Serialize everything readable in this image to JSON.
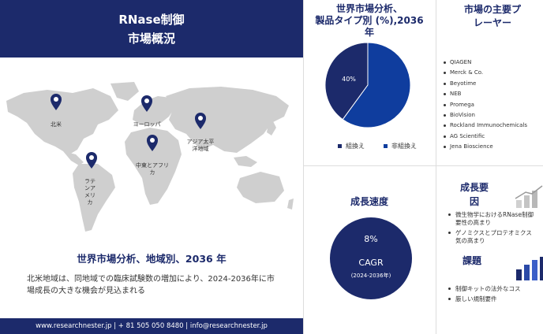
{
  "header": {
    "line1": "RNase制御",
    "line2": "市場概況"
  },
  "map": {
    "pins": [
      {
        "label": "北米"
      },
      {
        "label": "ヨーロッパ"
      },
      {
        "label": "アジア太平洋地域"
      },
      {
        "label": "中東とアフリカ"
      },
      {
        "label": "ラテンアメリカ"
      }
    ]
  },
  "region": {
    "title": "世界市場分析、地域別、2036 年",
    "description": "北米地域は、同地域での臨床試験数の増加により、2024-2036年に市場成長の大きな機会が見込まれる"
  },
  "footer": {
    "text": "www.researchnester.jp | + 81 505 050 8480 | info@researchnester.jp"
  },
  "pie": {
    "title_line1": "世界市場分析、",
    "title_line2": "製品タイプ別 (%),2036",
    "title_line3": "年",
    "label": "40%",
    "legend": [
      {
        "name": "組換え",
        "color": "#1c2a6b"
      },
      {
        "name": "非組換え",
        "color": "#0f3d9e"
      }
    ]
  },
  "chart_data": {
    "type": "pie",
    "title": "世界市場分析、製品タイプ別 (%),2036 年",
    "slices": [
      {
        "name": "組換え",
        "value": 40,
        "color": "#1c2a6b"
      },
      {
        "name": "非組換え",
        "value": 60,
        "color": "#0f3d9e"
      }
    ]
  },
  "players": {
    "title_line1": "市場の主要プ",
    "title_line2": "レーヤー",
    "items": [
      "QIAGEN",
      "Merck & Co.",
      "Beyotime",
      "NEB",
      "Promega",
      "BioVision",
      "Rockland Immunochemicals",
      "AG Scientific",
      "Jena Bioscience"
    ]
  },
  "growth": {
    "title": "成長速度",
    "percent": "8%",
    "cagr": "CAGR",
    "period": "(2024-2036年)"
  },
  "factors": {
    "growth_title_line1": "成長要",
    "growth_title_line2": "因",
    "drivers": [
      "微生物学におけるRNase制御",
      "要性の高まり",
      "ゲノミクスとプロテオミクス",
      "気の高まり"
    ],
    "challenges_title": "課題",
    "challenges": [
      "制御キットの法外なコス",
      "厳しい規制要件"
    ]
  },
  "colors": {
    "navy": "#1c2a6b",
    "blue": "#0f3d9e",
    "map_gray": "#cfcfcf"
  }
}
